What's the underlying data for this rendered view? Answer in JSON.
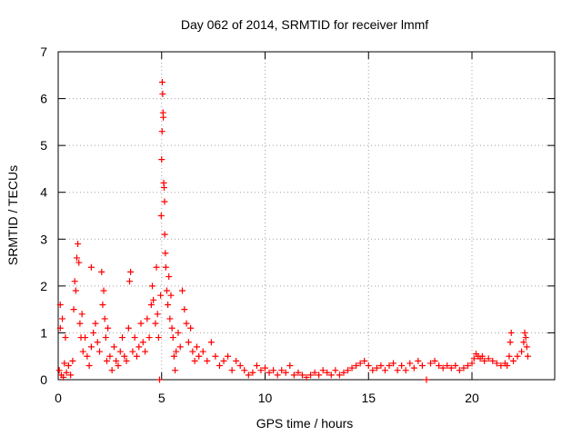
{
  "chart_data": {
    "type": "scatter",
    "title": "Day 062 of 2014, SRMTID for receiver lmmf",
    "xlabel": "GPS time / hours",
    "ylabel": "SRMTID / TECUs",
    "xlim": [
      0,
      24
    ],
    "ylim": [
      0,
      7
    ],
    "xticks": [
      0,
      5,
      10,
      15,
      20
    ],
    "yticks": [
      0,
      1,
      2,
      3,
      4,
      5,
      6,
      7
    ],
    "grid": true,
    "marker": "plus",
    "color": "#ff0000",
    "series": [
      {
        "name": "SRMTID",
        "points": [
          [
            0.05,
            0.2
          ],
          [
            0.1,
            1.1
          ],
          [
            0.1,
            1.6
          ],
          [
            0.15,
            0.1
          ],
          [
            0.2,
            1.3
          ],
          [
            0.25,
            0.05
          ],
          [
            0.3,
            0.35
          ],
          [
            0.35,
            0.9
          ],
          [
            0.4,
            0.15
          ],
          [
            0.5,
            0.3
          ],
          [
            0.6,
            0.1
          ],
          [
            0.7,
            0.4
          ],
          [
            0.75,
            1.5
          ],
          [
            0.8,
            2.1
          ],
          [
            0.85,
            1.9
          ],
          [
            0.9,
            2.6
          ],
          [
            0.95,
            2.9
          ],
          [
            1.0,
            2.5
          ],
          [
            1.05,
            1.2
          ],
          [
            1.1,
            0.9
          ],
          [
            1.15,
            1.4
          ],
          [
            1.2,
            0.6
          ],
          [
            1.3,
            0.9
          ],
          [
            1.4,
            0.5
          ],
          [
            1.5,
            0.3
          ],
          [
            1.6,
            0.7
          ],
          [
            1.6,
            2.4
          ],
          [
            1.7,
            1.0
          ],
          [
            1.8,
            1.2
          ],
          [
            1.9,
            0.8
          ],
          [
            2.0,
            0.6
          ],
          [
            2.1,
            2.3
          ],
          [
            2.15,
            1.6
          ],
          [
            2.2,
            1.9
          ],
          [
            2.25,
            1.3
          ],
          [
            2.3,
            0.9
          ],
          [
            2.35,
            0.4
          ],
          [
            2.4,
            1.1
          ],
          [
            2.5,
            0.5
          ],
          [
            2.6,
            0.2
          ],
          [
            2.7,
            0.7
          ],
          [
            2.8,
            0.4
          ],
          [
            2.9,
            0.3
          ],
          [
            3.0,
            0.6
          ],
          [
            3.1,
            0.9
          ],
          [
            3.2,
            0.5
          ],
          [
            3.3,
            0.4
          ],
          [
            3.4,
            1.1
          ],
          [
            3.45,
            2.1
          ],
          [
            3.5,
            2.3
          ],
          [
            3.6,
            0.6
          ],
          [
            3.7,
            0.9
          ],
          [
            3.8,
            0.5
          ],
          [
            3.9,
            0.7
          ],
          [
            4.0,
            1.2
          ],
          [
            4.1,
            0.8
          ],
          [
            4.2,
            0.6
          ],
          [
            4.3,
            1.3
          ],
          [
            4.4,
            0.9
          ],
          [
            4.5,
            1.6
          ],
          [
            4.55,
            2.0
          ],
          [
            4.6,
            1.7
          ],
          [
            4.7,
            1.2
          ],
          [
            4.75,
            2.4
          ],
          [
            4.8,
            1.4
          ],
          [
            4.85,
            0.9
          ],
          [
            4.9,
            0.0
          ],
          [
            4.95,
            1.8
          ],
          [
            4.98,
            3.5
          ],
          [
            5.0,
            4.7
          ],
          [
            5.02,
            5.3
          ],
          [
            5.03,
            6.35
          ],
          [
            5.05,
            6.1
          ],
          [
            5.07,
            5.7
          ],
          [
            5.08,
            5.6
          ],
          [
            5.1,
            4.2
          ],
          [
            5.12,
            4.1
          ],
          [
            5.14,
            3.8
          ],
          [
            5.15,
            3.1
          ],
          [
            5.18,
            2.7
          ],
          [
            5.2,
            2.4
          ],
          [
            5.25,
            1.9
          ],
          [
            5.3,
            1.6
          ],
          [
            5.35,
            2.2
          ],
          [
            5.4,
            1.3
          ],
          [
            5.45,
            1.8
          ],
          [
            5.5,
            1.1
          ],
          [
            5.55,
            0.9
          ],
          [
            5.6,
            0.5
          ],
          [
            5.65,
            0.2
          ],
          [
            5.7,
            0.6
          ],
          [
            5.8,
            1.0
          ],
          [
            5.9,
            0.7
          ],
          [
            6.0,
            1.9
          ],
          [
            6.1,
            1.5
          ],
          [
            6.2,
            1.2
          ],
          [
            6.3,
            0.8
          ],
          [
            6.4,
            1.1
          ],
          [
            6.5,
            0.6
          ],
          [
            6.6,
            0.4
          ],
          [
            6.7,
            0.7
          ],
          [
            6.8,
            0.5
          ],
          [
            7.0,
            0.6
          ],
          [
            7.2,
            0.4
          ],
          [
            7.4,
            0.8
          ],
          [
            7.6,
            0.5
          ],
          [
            7.8,
            0.3
          ],
          [
            8.0,
            0.4
          ],
          [
            8.2,
            0.5
          ],
          [
            8.4,
            0.2
          ],
          [
            8.6,
            0.4
          ],
          [
            8.8,
            0.3
          ],
          [
            9.0,
            0.2
          ],
          [
            9.2,
            0.1
          ],
          [
            9.4,
            0.15
          ],
          [
            9.6,
            0.3
          ],
          [
            9.8,
            0.2
          ],
          [
            10.0,
            0.25
          ],
          [
            10.2,
            0.15
          ],
          [
            10.4,
            0.2
          ],
          [
            10.6,
            0.1
          ],
          [
            10.8,
            0.2
          ],
          [
            11.0,
            0.15
          ],
          [
            11.2,
            0.3
          ],
          [
            11.4,
            0.1
          ],
          [
            11.6,
            0.15
          ],
          [
            11.8,
            0.1
          ],
          [
            12.0,
            0.05
          ],
          [
            12.2,
            0.1
          ],
          [
            12.4,
            0.15
          ],
          [
            12.6,
            0.1
          ],
          [
            12.8,
            0.2
          ],
          [
            13.0,
            0.15
          ],
          [
            13.2,
            0.1
          ],
          [
            13.4,
            0.2
          ],
          [
            13.6,
            0.1
          ],
          [
            13.8,
            0.15
          ],
          [
            14.0,
            0.2
          ],
          [
            14.2,
            0.25
          ],
          [
            14.4,
            0.3
          ],
          [
            14.6,
            0.35
          ],
          [
            14.8,
            0.4
          ],
          [
            15.0,
            0.3
          ],
          [
            15.2,
            0.2
          ],
          [
            15.4,
            0.25
          ],
          [
            15.6,
            0.3
          ],
          [
            15.8,
            0.2
          ],
          [
            16.0,
            0.3
          ],
          [
            16.2,
            0.35
          ],
          [
            16.4,
            0.2
          ],
          [
            16.6,
            0.3
          ],
          [
            16.8,
            0.2
          ],
          [
            17.0,
            0.35
          ],
          [
            17.2,
            0.25
          ],
          [
            17.4,
            0.4
          ],
          [
            17.6,
            0.3
          ],
          [
            17.8,
            0.0
          ],
          [
            18.0,
            0.35
          ],
          [
            18.2,
            0.4
          ],
          [
            18.4,
            0.3
          ],
          [
            18.6,
            0.25
          ],
          [
            18.8,
            0.3
          ],
          [
            19.0,
            0.25
          ],
          [
            19.2,
            0.3
          ],
          [
            19.4,
            0.2
          ],
          [
            19.6,
            0.25
          ],
          [
            19.8,
            0.3
          ],
          [
            20.0,
            0.35
          ],
          [
            20.1,
            0.45
          ],
          [
            20.2,
            0.55
          ],
          [
            20.3,
            0.5
          ],
          [
            20.4,
            0.45
          ],
          [
            20.5,
            0.5
          ],
          [
            20.6,
            0.4
          ],
          [
            20.8,
            0.45
          ],
          [
            21.0,
            0.4
          ],
          [
            21.2,
            0.35
          ],
          [
            21.4,
            0.3
          ],
          [
            21.6,
            0.35
          ],
          [
            21.7,
            0.3
          ],
          [
            21.8,
            0.5
          ],
          [
            21.85,
            0.8
          ],
          [
            21.9,
            1.0
          ],
          [
            22.0,
            0.4
          ],
          [
            22.2,
            0.5
          ],
          [
            22.4,
            0.6
          ],
          [
            22.5,
            0.8
          ],
          [
            22.55,
            1.0
          ],
          [
            22.6,
            0.9
          ],
          [
            22.65,
            0.7
          ],
          [
            22.7,
            0.5
          ]
        ]
      }
    ]
  }
}
